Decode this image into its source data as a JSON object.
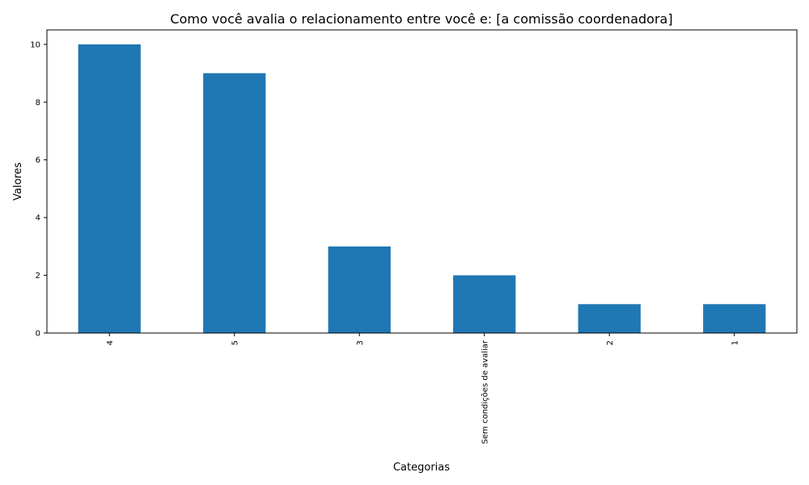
{
  "chart_data": {
    "type": "bar",
    "title": "Como você avalia o relacionamento entre você e: [a comissão coordenadora]",
    "xlabel": "Categorias",
    "ylabel": "Valores",
    "categories": [
      "4",
      "5",
      "3",
      "Sem condições de avaliar",
      "2",
      "1"
    ],
    "values": [
      10,
      9,
      3,
      2,
      1,
      1
    ],
    "ylim": [
      0,
      10.5
    ],
    "yticks": [
      0,
      2,
      4,
      6,
      8,
      10
    ],
    "bar_color": "#1f77b4",
    "grid": false,
    "legend": "none"
  }
}
